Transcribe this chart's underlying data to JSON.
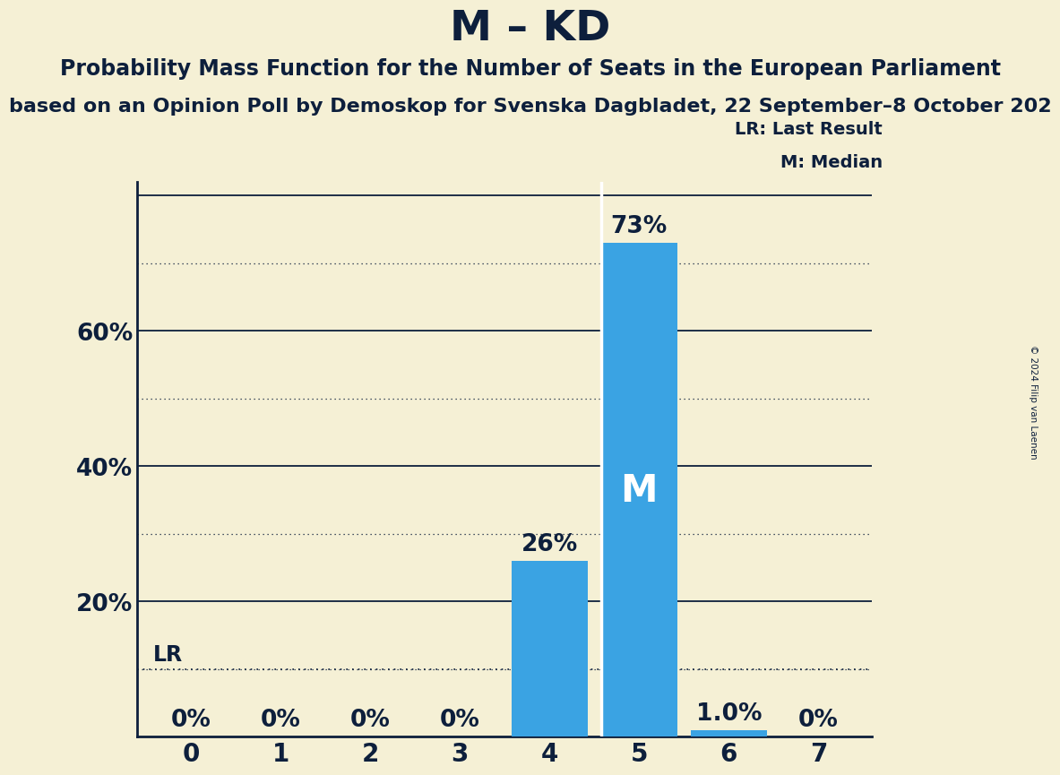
{
  "title": "M – KD",
  "subtitle": "Probability Mass Function for the Number of Seats in the European Parliament",
  "sub_subtitle": "based on an Opinion Poll by Demoskop for Svenska Dagbladet, 22 September–8 October 202",
  "copyright": "© 2024 Filip van Laenen",
  "categories": [
    0,
    1,
    2,
    3,
    4,
    5,
    6,
    7
  ],
  "values": [
    0.0,
    0.0,
    0.0,
    0.0,
    26.0,
    73.0,
    1.0,
    0.0
  ],
  "bar_color": "#3aa3e3",
  "background_color": "#f5f0d5",
  "bar_labels": [
    "0%",
    "0%",
    "0%",
    "0%",
    "26%",
    "73%",
    "1.0%",
    "0%"
  ],
  "median_bar": 5,
  "median_label": "M",
  "lr_value": 10.0,
  "lr_label": "LR",
  "yticks": [
    20,
    40,
    60
  ],
  "ytick_labels": [
    "20%",
    "40%",
    "60%"
  ],
  "ylim": [
    0,
    82
  ],
  "legend_lr": "LR: Last Result",
  "legend_m": "M: Median",
  "title_fontsize": 34,
  "subtitle_fontsize": 17,
  "sub_subtitle_fontsize": 16,
  "axis_tick_fontsize": 19,
  "bar_label_fontsize": 17,
  "text_color": "#0d1f3c",
  "dotted_line_color": "#0d1f3c",
  "solid_line_color": "#0d1f3c"
}
